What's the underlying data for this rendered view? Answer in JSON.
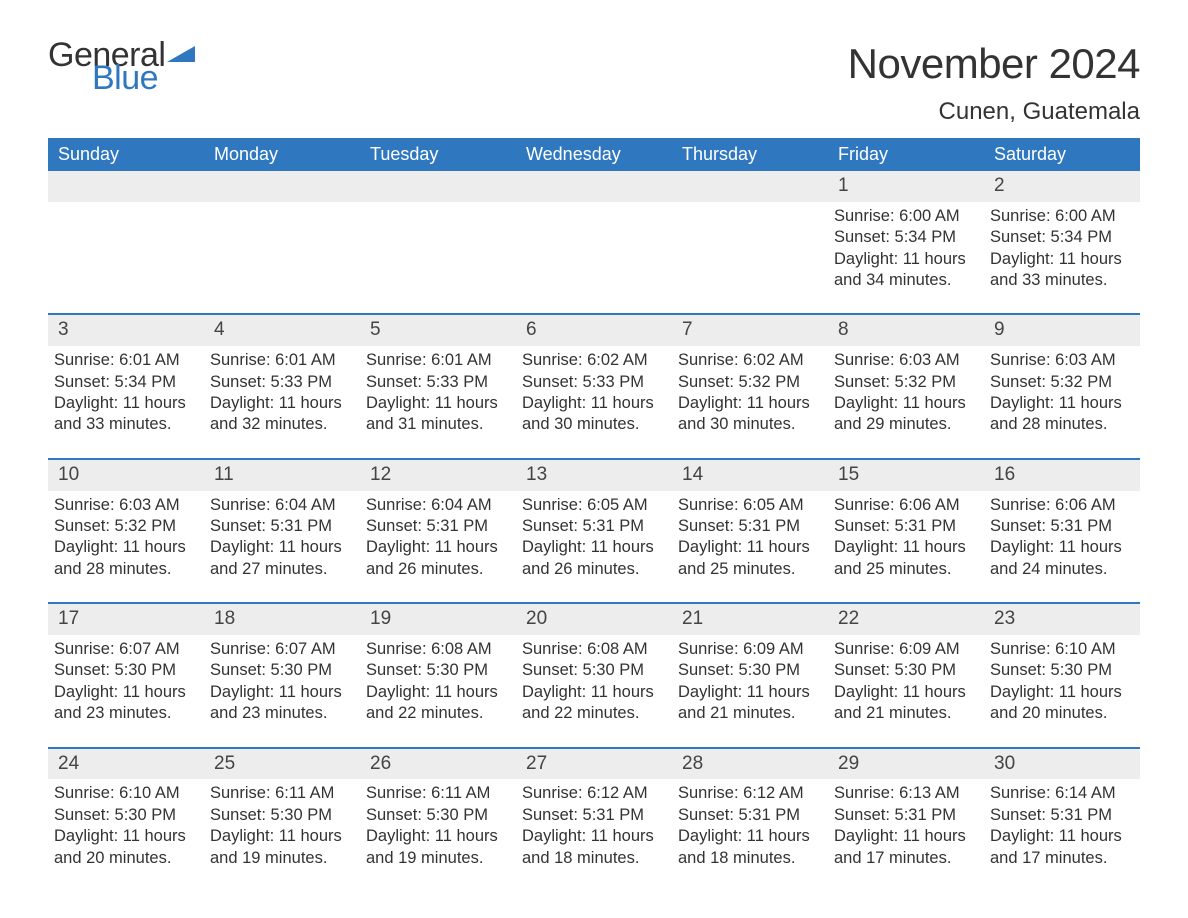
{
  "brand": {
    "word1": "General",
    "word2": "Blue",
    "color_text": "#333333",
    "color_accent": "#2f78bf"
  },
  "title": "November 2024",
  "location": "Cunen, Guatemala",
  "colors": {
    "header_bg": "#2f78bf",
    "header_text": "#ffffff",
    "daynum_bg": "#ededed",
    "body_text": "#333333",
    "page_bg": "#ffffff"
  },
  "weekdays": [
    "Sunday",
    "Monday",
    "Tuesday",
    "Wednesday",
    "Thursday",
    "Friday",
    "Saturday"
  ],
  "weeks": [
    [
      null,
      null,
      null,
      null,
      null,
      {
        "n": "1",
        "sunrise": "6:00 AM",
        "sunset": "5:34 PM",
        "daylight": "11 hours and 34 minutes."
      },
      {
        "n": "2",
        "sunrise": "6:00 AM",
        "sunset": "5:34 PM",
        "daylight": "11 hours and 33 minutes."
      }
    ],
    [
      {
        "n": "3",
        "sunrise": "6:01 AM",
        "sunset": "5:34 PM",
        "daylight": "11 hours and 33 minutes."
      },
      {
        "n": "4",
        "sunrise": "6:01 AM",
        "sunset": "5:33 PM",
        "daylight": "11 hours and 32 minutes."
      },
      {
        "n": "5",
        "sunrise": "6:01 AM",
        "sunset": "5:33 PM",
        "daylight": "11 hours and 31 minutes."
      },
      {
        "n": "6",
        "sunrise": "6:02 AM",
        "sunset": "5:33 PM",
        "daylight": "11 hours and 30 minutes."
      },
      {
        "n": "7",
        "sunrise": "6:02 AM",
        "sunset": "5:32 PM",
        "daylight": "11 hours and 30 minutes."
      },
      {
        "n": "8",
        "sunrise": "6:03 AM",
        "sunset": "5:32 PM",
        "daylight": "11 hours and 29 minutes."
      },
      {
        "n": "9",
        "sunrise": "6:03 AM",
        "sunset": "5:32 PM",
        "daylight": "11 hours and 28 minutes."
      }
    ],
    [
      {
        "n": "10",
        "sunrise": "6:03 AM",
        "sunset": "5:32 PM",
        "daylight": "11 hours and 28 minutes."
      },
      {
        "n": "11",
        "sunrise": "6:04 AM",
        "sunset": "5:31 PM",
        "daylight": "11 hours and 27 minutes."
      },
      {
        "n": "12",
        "sunrise": "6:04 AM",
        "sunset": "5:31 PM",
        "daylight": "11 hours and 26 minutes."
      },
      {
        "n": "13",
        "sunrise": "6:05 AM",
        "sunset": "5:31 PM",
        "daylight": "11 hours and 26 minutes."
      },
      {
        "n": "14",
        "sunrise": "6:05 AM",
        "sunset": "5:31 PM",
        "daylight": "11 hours and 25 minutes."
      },
      {
        "n": "15",
        "sunrise": "6:06 AM",
        "sunset": "5:31 PM",
        "daylight": "11 hours and 25 minutes."
      },
      {
        "n": "16",
        "sunrise": "6:06 AM",
        "sunset": "5:31 PM",
        "daylight": "11 hours and 24 minutes."
      }
    ],
    [
      {
        "n": "17",
        "sunrise": "6:07 AM",
        "sunset": "5:30 PM",
        "daylight": "11 hours and 23 minutes."
      },
      {
        "n": "18",
        "sunrise": "6:07 AM",
        "sunset": "5:30 PM",
        "daylight": "11 hours and 23 minutes."
      },
      {
        "n": "19",
        "sunrise": "6:08 AM",
        "sunset": "5:30 PM",
        "daylight": "11 hours and 22 minutes."
      },
      {
        "n": "20",
        "sunrise": "6:08 AM",
        "sunset": "5:30 PM",
        "daylight": "11 hours and 22 minutes."
      },
      {
        "n": "21",
        "sunrise": "6:09 AM",
        "sunset": "5:30 PM",
        "daylight": "11 hours and 21 minutes."
      },
      {
        "n": "22",
        "sunrise": "6:09 AM",
        "sunset": "5:30 PM",
        "daylight": "11 hours and 21 minutes."
      },
      {
        "n": "23",
        "sunrise": "6:10 AM",
        "sunset": "5:30 PM",
        "daylight": "11 hours and 20 minutes."
      }
    ],
    [
      {
        "n": "24",
        "sunrise": "6:10 AM",
        "sunset": "5:30 PM",
        "daylight": "11 hours and 20 minutes."
      },
      {
        "n": "25",
        "sunrise": "6:11 AM",
        "sunset": "5:30 PM",
        "daylight": "11 hours and 19 minutes."
      },
      {
        "n": "26",
        "sunrise": "6:11 AM",
        "sunset": "5:30 PM",
        "daylight": "11 hours and 19 minutes."
      },
      {
        "n": "27",
        "sunrise": "6:12 AM",
        "sunset": "5:31 PM",
        "daylight": "11 hours and 18 minutes."
      },
      {
        "n": "28",
        "sunrise": "6:12 AM",
        "sunset": "5:31 PM",
        "daylight": "11 hours and 18 minutes."
      },
      {
        "n": "29",
        "sunrise": "6:13 AM",
        "sunset": "5:31 PM",
        "daylight": "11 hours and 17 minutes."
      },
      {
        "n": "30",
        "sunrise": "6:14 AM",
        "sunset": "5:31 PM",
        "daylight": "11 hours and 17 minutes."
      }
    ]
  ],
  "labels": {
    "sunrise": "Sunrise: ",
    "sunset": "Sunset: ",
    "daylight": "Daylight: "
  }
}
